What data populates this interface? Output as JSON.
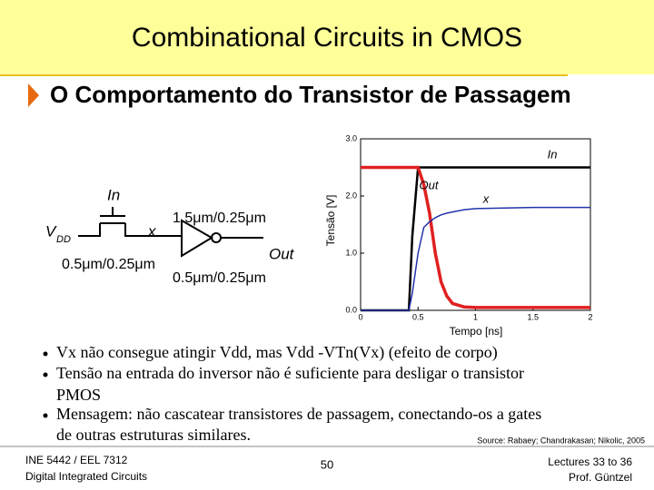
{
  "header": {
    "title": "Combinational Circuits in CMOS",
    "subtitle": "O Comportamento do Transistor de Passagem"
  },
  "diagram": {
    "labels": {
      "in": "In",
      "vdd": "V",
      "vdd_sub": "DD",
      "x": "x",
      "pass_size": "0.5μm/0.25μm",
      "pmos_size": "1.5μm/0.25μm",
      "nmos_size": "0.5μm/0.25μm",
      "out": "Out"
    }
  },
  "chart_data": {
    "type": "line",
    "x_label": "Tempo [ns]",
    "y_label": "Tensão [V]",
    "xlim": [
      0,
      2
    ],
    "ylim": [
      0,
      3
    ],
    "xticks": [
      0,
      0.5,
      1,
      1.5,
      2
    ],
    "yticks": [
      {
        "value": 0,
        "label": "0.0"
      },
      {
        "value": 1,
        "label": "1.0"
      },
      {
        "value": 2,
        "label": "2.0"
      },
      {
        "value": 3,
        "label": "3.0"
      }
    ],
    "grid": false,
    "x": [
      0,
      0.42,
      0.45,
      0.5,
      0.55,
      0.6,
      0.65,
      0.7,
      0.75,
      0.8,
      0.9,
      1,
      1.5,
      2
    ],
    "series": [
      {
        "name": "In",
        "color": "#000000",
        "values": [
          0,
          0,
          1.3,
          2.5,
          2.5,
          2.5,
          2.5,
          2.5,
          2.5,
          2.5,
          2.5,
          2.5,
          2.5,
          2.5
        ]
      },
      {
        "name": "Out",
        "color": "#e02020",
        "values": [
          2.5,
          2.5,
          2.5,
          2.5,
          2.2,
          1.7,
          1.0,
          0.5,
          0.25,
          0.12,
          0.06,
          0.05,
          0.05,
          0.05
        ]
      },
      {
        "name": "x",
        "color": "#2233aa",
        "values": [
          0,
          0,
          0.3,
          1.0,
          1.45,
          1.55,
          1.62,
          1.67,
          1.7,
          1.72,
          1.76,
          1.78,
          1.8,
          1.8
        ]
      }
    ]
  },
  "bullets": [
    "Vx não consegue atingir Vdd, mas Vdd -VTn(Vx) (efeito de corpo)",
    "Tensão na entrada do inversor não é suficiente para desligar o transistor",
    "PMOS",
    "Mensagem: não cascatear transistores de passagem, conectando-os a gates",
    "de outras estruturas similares."
  ],
  "source": "Source: Rabaey; Chandrakasan; Nikolic, 2005",
  "footer": {
    "course": "INE 5442 / EEL 7312",
    "course_name": "Digital Integrated Circuits",
    "page": "50",
    "lectures": "Lectures 33 to 36",
    "author": "Prof. Güntzel"
  }
}
